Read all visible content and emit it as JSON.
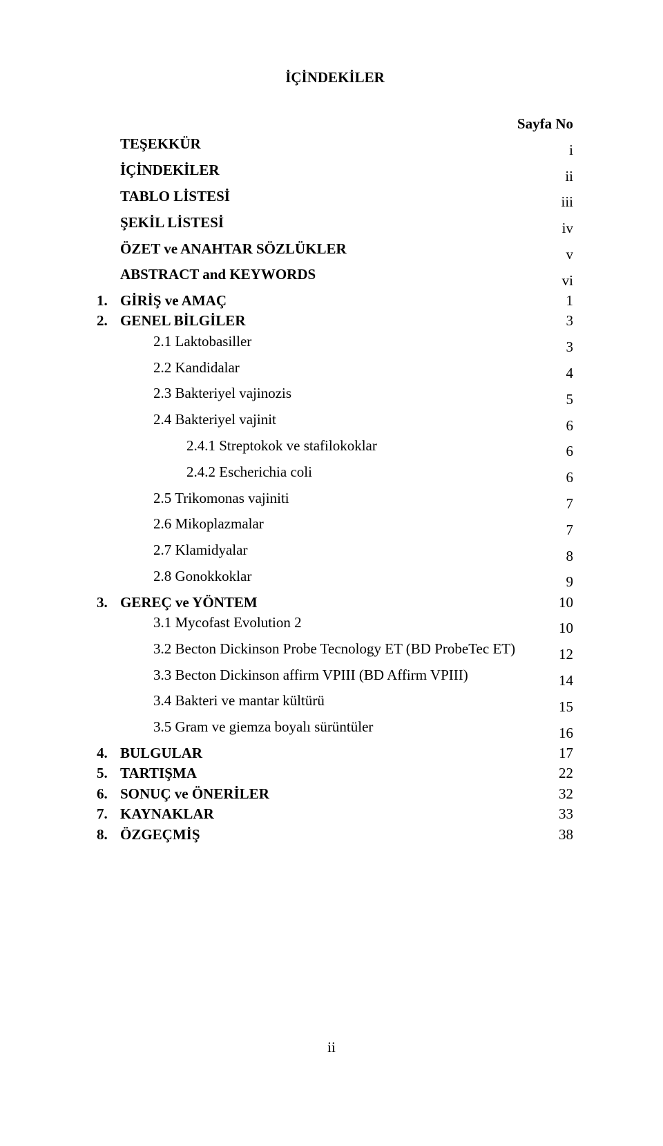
{
  "title": "İÇİNDEKİLER",
  "header": {
    "label": "",
    "page": "Sayfa No"
  },
  "entries": [
    {
      "num": "",
      "label": "TEŞEKKÜR",
      "page": "i",
      "bold": true,
      "indent": 0
    },
    {
      "num": "",
      "label": "İÇİNDEKİLER",
      "page": "ii",
      "bold": true,
      "indent": 0
    },
    {
      "num": "",
      "label": "TABLO LİSTESİ",
      "page": "iii",
      "bold": true,
      "indent": 0
    },
    {
      "num": "",
      "label": "ŞEKİL LİSTESİ",
      "page": "iv",
      "bold": true,
      "indent": 0
    },
    {
      "num": "",
      "label": "ÖZET ve ANAHTAR SÖZLÜKLER",
      "page": "v",
      "bold": true,
      "indent": 0
    },
    {
      "num": "",
      "label": "ABSTRACT and KEYWORDS",
      "page": "vi",
      "bold": true,
      "indent": 0
    },
    {
      "num": "1.",
      "label": "GİRİŞ ve AMAÇ",
      "page": "1",
      "bold": true,
      "indent": 0
    },
    {
      "num": "2.",
      "label": "GENEL BİLGİLER",
      "page": "3",
      "bold": true,
      "indent": 0
    },
    {
      "num": "",
      "label": "2.1 Laktobasiller",
      "page": "3",
      "bold": false,
      "indent": 1
    },
    {
      "num": "",
      "label": "2.2 Kandidalar",
      "page": "4",
      "bold": false,
      "indent": 1
    },
    {
      "num": "",
      "label": "2.3 Bakteriyel vajinozis",
      "page": "5",
      "bold": false,
      "indent": 1
    },
    {
      "num": "",
      "label": "2.4 Bakteriyel vajinit",
      "page": "6",
      "bold": false,
      "indent": 1
    },
    {
      "num": "",
      "label": "2.4.1 Streptokok ve stafilokoklar",
      "page": "6",
      "bold": false,
      "indent": 2
    },
    {
      "num": "",
      "label": "2.4.2 Escherichia coli",
      "page": "6",
      "bold": false,
      "indent": 2
    },
    {
      "num": "",
      "label": "2.5 Trikomonas vajiniti",
      "page": "7",
      "bold": false,
      "indent": 1
    },
    {
      "num": "",
      "label": "2.6 Mikoplazmalar",
      "page": "7",
      "bold": false,
      "indent": 1
    },
    {
      "num": "",
      "label": "2.7 Klamidyalar",
      "page": "8",
      "bold": false,
      "indent": 1
    },
    {
      "num": "",
      "label": "2.8 Gonokkoklar",
      "page": "9",
      "bold": false,
      "indent": 1
    },
    {
      "num": "3.",
      "label": "GEREÇ ve YÖNTEM",
      "page": "10",
      "bold": true,
      "indent": 0
    },
    {
      "num": "",
      "label": "3.1 Mycofast Evolution 2",
      "page": "10",
      "bold": false,
      "indent": 1
    },
    {
      "num": "",
      "label": "3.2 Becton Dickinson Probe Tecnology ET (BD ProbeTec ET)",
      "page": "12",
      "bold": false,
      "indent": 1
    },
    {
      "num": "",
      "label": "3.3 Becton Dickinson affirm VPIII (BD Affirm VPIII)",
      "page": "14",
      "bold": false,
      "indent": 1
    },
    {
      "num": "",
      "label": "3.4 Bakteri ve mantar kültürü",
      "page": "15",
      "bold": false,
      "indent": 1
    },
    {
      "num": "",
      "label": "3.5 Gram ve giemza boyalı sürüntüler",
      "page": "16",
      "bold": false,
      "indent": 1
    },
    {
      "num": "4.",
      "label": "BULGULAR",
      "page": "17",
      "bold": true,
      "indent": 0
    },
    {
      "num": "5.",
      "label": "TARTIŞMA",
      "page": "22",
      "bold": true,
      "indent": 0
    },
    {
      "num": "6.",
      "label": "SONUÇ ve ÖNERİLER",
      "page": "32",
      "bold": true,
      "indent": 0
    },
    {
      "num": "7.",
      "label": "KAYNAKLAR",
      "page": "33",
      "bold": true,
      "indent": 0
    },
    {
      "num": "8.",
      "label": "ÖZGEÇMİŞ",
      "page": "38",
      "bold": true,
      "indent": 0
    }
  ],
  "page_number": "ii"
}
